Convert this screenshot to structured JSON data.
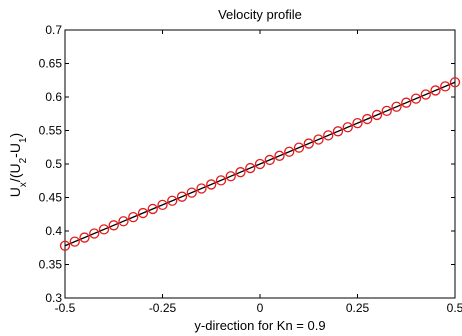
{
  "chart_data": {
    "type": "line",
    "title": "Velocity profile",
    "xlabel": "y-direction for Kn = 0.9",
    "ylabel": "U_x/(U_2-U_1)",
    "xlim": [
      -0.5,
      0.5
    ],
    "ylim": [
      0.3,
      0.7
    ],
    "xticks": [
      -0.5,
      -0.25,
      0,
      0.25,
      0.5
    ],
    "xtick_labels": [
      "-0.5",
      "-0.25",
      "0",
      "0.25",
      "0.5"
    ],
    "yticks": [
      0.3,
      0.35,
      0.4,
      0.45,
      0.5,
      0.55,
      0.6,
      0.65,
      0.7
    ],
    "ytick_labels": [
      "0.3",
      "0.35",
      "0.4",
      "0.45",
      "0.5",
      "0.55",
      "0.6",
      "0.65",
      "0.7"
    ],
    "grid": false,
    "legend": "none",
    "series": [
      {
        "style": "solid-line",
        "color": "#000000",
        "x": [
          -0.5,
          0.5
        ],
        "y": [
          0.378,
          0.622
        ]
      },
      {
        "style": "circle-markers",
        "color": "#e41a1c",
        "x": [
          -0.5,
          -0.475,
          -0.45,
          -0.425,
          -0.4,
          -0.375,
          -0.35,
          -0.325,
          -0.3,
          -0.275,
          -0.25,
          -0.225,
          -0.2,
          -0.175,
          -0.15,
          -0.125,
          -0.1,
          -0.075,
          -0.05,
          -0.025,
          0,
          0.025,
          0.05,
          0.075,
          0.1,
          0.125,
          0.15,
          0.175,
          0.2,
          0.225,
          0.25,
          0.275,
          0.3,
          0.325,
          0.35,
          0.375,
          0.4,
          0.425,
          0.45,
          0.475,
          0.5
        ],
        "y": [
          0.378,
          0.3841,
          0.3902,
          0.3963,
          0.4024,
          0.4085,
          0.4146,
          0.4207,
          0.4268,
          0.4329,
          0.439,
          0.4451,
          0.4512,
          0.4573,
          0.4634,
          0.4695,
          0.4756,
          0.4817,
          0.4878,
          0.4939,
          0.5,
          0.5061,
          0.5122,
          0.5183,
          0.5244,
          0.5305,
          0.5366,
          0.5427,
          0.5488,
          0.5549,
          0.561,
          0.5671,
          0.5732,
          0.5793,
          0.5854,
          0.5915,
          0.5976,
          0.6037,
          0.6098,
          0.6159,
          0.622
        ]
      }
    ]
  }
}
